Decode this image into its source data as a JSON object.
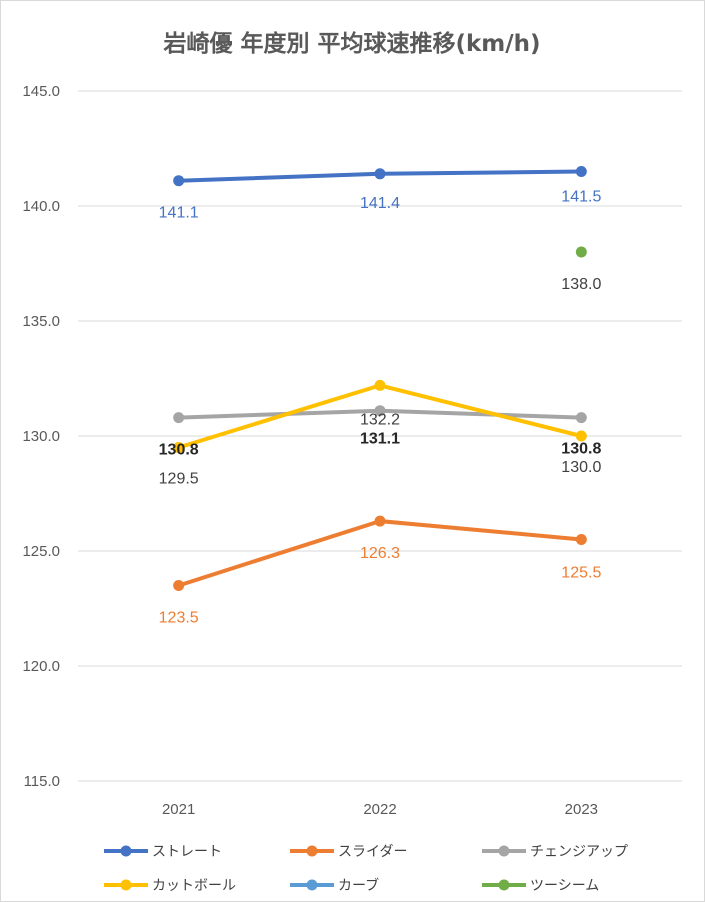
{
  "chart_data": {
    "type": "line",
    "title": "岩崎優 年度別 平均球速推移(km/h)",
    "xlabel": "",
    "ylabel": "",
    "categories": [
      "2021",
      "2022",
      "2023"
    ],
    "ylim": [
      115,
      145
    ],
    "yticks": [
      "115.0",
      "120.0",
      "125.0",
      "130.0",
      "135.0",
      "140.0",
      "145.0"
    ],
    "grid": true,
    "legend_position": "bottom",
    "series": [
      {
        "name": "ストレート",
        "color": "#4472c4",
        "values": [
          141.1,
          141.4,
          141.5
        ],
        "labels": [
          "141.1",
          "141.4",
          "141.5"
        ],
        "label_color": "#4472c4",
        "label_bold": false
      },
      {
        "name": "スライダー",
        "color": "#ed7d31",
        "values": [
          123.5,
          126.3,
          125.5
        ],
        "labels": [
          "123.5",
          "126.3",
          "125.5"
        ],
        "label_color": "#ed7d31",
        "label_bold": false
      },
      {
        "name": "チェンジアップ",
        "color": "#a5a5a5",
        "values": [
          130.8,
          131.1,
          130.8
        ],
        "labels": [
          "130.8",
          "131.1",
          "130.8"
        ],
        "label_color": "#262626",
        "label_bold": true
      },
      {
        "name": "カットボール",
        "color": "#ffc000",
        "values": [
          129.5,
          132.2,
          130.0
        ],
        "labels": [
          "129.5",
          "132.2",
          "130.0"
        ],
        "label_color": "#404040",
        "label_bold": false
      },
      {
        "name": "カーブ",
        "color": "#5b9bd5",
        "values": [
          null,
          null,
          null
        ],
        "labels": [
          "",
          "",
          ""
        ],
        "label_color": "#5b9bd5",
        "label_bold": false
      },
      {
        "name": "ツーシーム",
        "color": "#70ad47",
        "values": [
          null,
          null,
          138.0
        ],
        "labels": [
          "",
          "",
          "138.0"
        ],
        "label_color": "#404040",
        "label_bold": false
      }
    ]
  }
}
